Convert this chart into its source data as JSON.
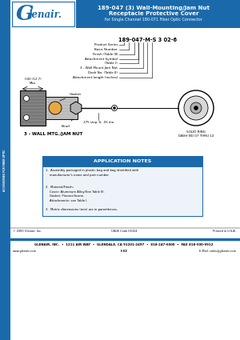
{
  "title_line1": "189-047 (3) Wall-Mounting/Jam Nut",
  "title_line2": "Receptacle Protective Cover",
  "title_line3": "for Single Channel 180-071 Fiber Optic Connector",
  "header_bg": "#1a6aab",
  "header_text_color": "#ffffff",
  "sidebar_bg": "#1a6aab",
  "part_number_label": "189-047-M-S 3 02-6",
  "callout_lines": [
    "Product Series",
    "Basic Number",
    "Finish (Table III)",
    "Attachment Symbol",
    "  (Table I)",
    "3 - Wall Mount Jam Nut",
    "Dash No. (Table II)",
    "Attachment length (inches)"
  ],
  "drawing_label": "3 - WALL MTG./JAM NUT",
  "gasket_label": "Gasket",
  "knurl_label": "Knurl",
  "solid_ring_label": "SOLID RING\nDASH NO 07 THRU 12",
  "dim_label": ".500 (12.7)\nMax.",
  "dim_label2": ".375 step, 6, .05 dia.",
  "app_notes_title": "APPLICATION NOTES",
  "app_notes_bg": "#1a6aab",
  "note1": "1.  Assembly packaged in plastic bag and bag identified with\n    manufacturer's name and part number.",
  "note2": "2.  Material/Finish:\n    Cover: Aluminum Alloy/See Table III.\n    Gasket: Fluorosilicone.\n    Attachments: see Table I.",
  "note3": "3.  Metric dimensions (mm) are in parentheses.",
  "footer_copy": "© 2000 Glenair, Inc.",
  "footer_cage": "CAGE Code 06324",
  "footer_printed": "Printed in U.S.A.",
  "footer_main": "GLENAIR, INC.  •  1211 AIR WAY  •  GLENDALE, CA 91201-2497  •  818-247-6000  •  FAX 818-500-9912",
  "footer_web": "www.glenair.com",
  "footer_page": "I-32",
  "footer_email": "E-Mail: sales@glenair.com",
  "bg_color": "#ffffff"
}
